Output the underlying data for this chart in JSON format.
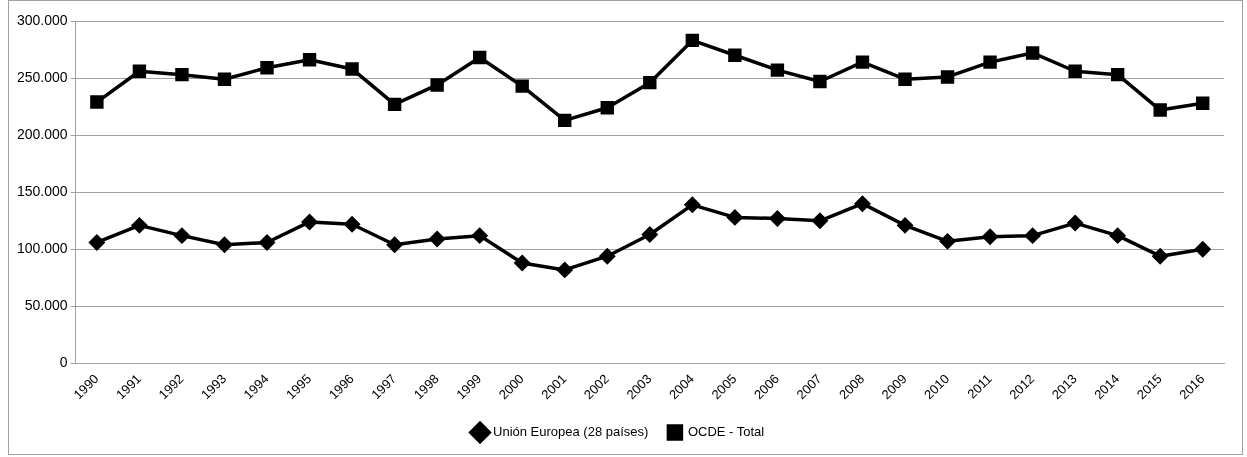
{
  "chart_data": {
    "type": "line",
    "categories": [
      "1990",
      "1991",
      "1992",
      "1993",
      "1994",
      "1995",
      "1996",
      "1997",
      "1998",
      "1999",
      "2000",
      "2001",
      "2002",
      "2003",
      "2004",
      "2005",
      "2006",
      "2007",
      "2008",
      "2009",
      "2010",
      "2011",
      "2012",
      "2013",
      "2014",
      "2015",
      "2016"
    ],
    "series": [
      {
        "name": "Unión Europea (28 países)",
        "color": "#000000",
        "marker": "diamond",
        "values": [
          106000,
          121000,
          112000,
          104000,
          106000,
          124000,
          122000,
          104000,
          109000,
          112000,
          88000,
          82000,
          94000,
          113000,
          139000,
          128000,
          127000,
          125000,
          140000,
          121000,
          107000,
          111000,
          112000,
          123000,
          112000,
          94000,
          100000
        ]
      },
      {
        "name": "OCDE - Total",
        "color": "#000000",
        "marker": "square",
        "values": [
          229000,
          256000,
          253000,
          249000,
          259000,
          266000,
          258000,
          227000,
          244000,
          268000,
          243000,
          213000,
          224000,
          246000,
          283000,
          270000,
          257000,
          247000,
          264000,
          249000,
          251000,
          264000,
          272000,
          256000,
          253000,
          222000,
          228000
        ]
      }
    ],
    "ylim": [
      0,
      300000
    ],
    "yticks": [
      {
        "value": 0,
        "label": "0"
      },
      {
        "value": 50000,
        "label": "50.000"
      },
      {
        "value": 100000,
        "label": "100.000"
      },
      {
        "value": 150000,
        "label": "150.000"
      },
      {
        "value": 200000,
        "label": "200.000"
      },
      {
        "value": 250000,
        "label": "250.000"
      },
      {
        "value": 300000,
        "label": "300.000"
      }
    ],
    "grid": "y",
    "legend": "bottom",
    "line_style": "solid"
  }
}
